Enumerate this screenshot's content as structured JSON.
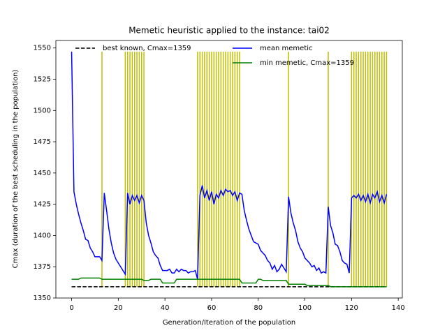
{
  "chart_data": {
    "type": "line",
    "title": "Memetic heuristic applied to the instance: tai02",
    "xlabel": "Generation/Iteration of the population",
    "ylabel": "Cmax (duration of the best scheduling in the population)",
    "xlim": [
      -6.75,
      141.75
    ],
    "ylim": [
      1350,
      1556
    ],
    "xticks": [
      0,
      20,
      40,
      60,
      80,
      100,
      120,
      140
    ],
    "yticks": [
      1350,
      1375,
      1400,
      1425,
      1450,
      1475,
      1500,
      1525,
      1550
    ],
    "x": [
      0,
      1,
      2,
      3,
      4,
      5,
      6,
      7,
      8,
      9,
      10,
      11,
      12,
      13,
      14,
      15,
      16,
      17,
      18,
      19,
      20,
      21,
      22,
      23,
      24,
      25,
      26,
      27,
      28,
      29,
      30,
      31,
      32,
      33,
      34,
      35,
      36,
      37,
      38,
      39,
      40,
      41,
      42,
      43,
      44,
      45,
      46,
      47,
      48,
      49,
      50,
      51,
      52,
      53,
      54,
      55,
      56,
      57,
      58,
      59,
      60,
      61,
      62,
      63,
      64,
      65,
      66,
      67,
      68,
      69,
      70,
      71,
      72,
      73,
      74,
      75,
      76,
      77,
      78,
      79,
      80,
      81,
      82,
      83,
      84,
      85,
      86,
      87,
      88,
      89,
      90,
      91,
      92,
      93,
      94,
      95,
      96,
      97,
      98,
      99,
      100,
      101,
      102,
      103,
      104,
      105,
      106,
      107,
      108,
      109,
      110,
      111,
      112,
      113,
      114,
      115,
      116,
      117,
      118,
      119,
      120,
      121,
      122,
      123,
      124,
      125,
      126,
      127,
      128,
      129,
      130,
      131,
      132,
      133,
      134,
      135
    ],
    "vlines": {
      "color": "#bfbf00",
      "ymin": 1359,
      "ymax": 1547,
      "x": [
        13,
        23,
        24,
        25,
        26,
        27,
        28,
        29,
        30,
        31,
        54,
        55,
        56,
        57,
        58,
        59,
        60,
        61,
        62,
        63,
        64,
        65,
        66,
        67,
        68,
        69,
        70,
        71,
        72,
        93,
        110,
        120,
        121,
        122,
        123,
        124,
        125,
        126,
        127,
        128,
        129,
        130,
        131,
        132,
        133,
        134,
        135
      ]
    },
    "series": [
      {
        "name": "best known, Cmax=1359",
        "color": "#000000",
        "dashed": true,
        "x": [
          0,
          135
        ],
        "values": [
          1359,
          1359
        ]
      },
      {
        "name": "mean memetic",
        "color": "#0000ff",
        "values": [
          1547,
          1435,
          1425,
          1417,
          1410,
          1404,
          1397,
          1396,
          1390,
          1387,
          1383,
          1383,
          1383,
          1380,
          1434,
          1420,
          1405,
          1394,
          1386,
          1381,
          1378,
          1375,
          1372,
          1369,
          1434,
          1425,
          1432,
          1428,
          1432,
          1426,
          1432,
          1428,
          1410,
          1400,
          1394,
          1387,
          1384,
          1382,
          1376,
          1372,
          1372,
          1372,
          1373,
          1370,
          1370,
          1373,
          1371,
          1373,
          1372,
          1372,
          1370,
          1371,
          1371,
          1372,
          1365,
          1432,
          1440,
          1430,
          1436,
          1428,
          1435,
          1425,
          1433,
          1430,
          1436,
          1432,
          1437,
          1435,
          1436,
          1432,
          1435,
          1428,
          1434,
          1433,
          1420,
          1412,
          1405,
          1400,
          1395,
          1394,
          1393,
          1388,
          1386,
          1384,
          1380,
          1378,
          1373,
          1376,
          1371,
          1373,
          1377,
          1374,
          1371,
          1431,
          1418,
          1410,
          1404,
          1395,
          1390,
          1387,
          1382,
          1380,
          1378,
          1375,
          1376,
          1372,
          1374,
          1370,
          1371,
          1370,
          1423,
          1408,
          1402,
          1393,
          1392,
          1387,
          1380,
          1378,
          1377,
          1370,
          1430,
          1432,
          1430,
          1433,
          1428,
          1432,
          1427,
          1433,
          1426,
          1433,
          1430,
          1435,
          1427,
          1432,
          1426,
          1433
        ]
      },
      {
        "name": "min memetic, Cmax=1359",
        "color": "#008000",
        "values": [
          1365,
          1365,
          1365,
          1365,
          1366,
          1366,
          1366,
          1366,
          1366,
          1366,
          1366,
          1366,
          1366,
          1365,
          1365,
          1365,
          1365,
          1365,
          1365,
          1365,
          1365,
          1365,
          1365,
          1365,
          1365,
          1365,
          1365,
          1365,
          1365,
          1365,
          1365,
          1364,
          1364,
          1364,
          1365,
          1365,
          1365,
          1365,
          1365,
          1362,
          1362,
          1362,
          1362,
          1362,
          1362,
          1365,
          1365,
          1365,
          1365,
          1365,
          1365,
          1365,
          1365,
          1365,
          1365,
          1365,
          1365,
          1365,
          1365,
          1365,
          1365,
          1365,
          1365,
          1365,
          1365,
          1365,
          1365,
          1365,
          1365,
          1365,
          1365,
          1365,
          1365,
          1362,
          1362,
          1362,
          1362,
          1362,
          1362,
          1362,
          1365,
          1365,
          1364,
          1364,
          1364,
          1364,
          1364,
          1364,
          1364,
          1364,
          1364,
          1364,
          1364,
          1361,
          1361,
          1361,
          1361,
          1361,
          1361,
          1361,
          1361,
          1360,
          1360,
          1360,
          1360,
          1360,
          1360,
          1360,
          1360,
          1360,
          1360,
          1359,
          1359,
          1359,
          1359,
          1359,
          1359,
          1359,
          1359,
          1359,
          1359,
          1359,
          1359,
          1359,
          1359,
          1359,
          1359,
          1359,
          1359,
          1359,
          1359,
          1359,
          1359,
          1359,
          1359,
          1359
        ]
      }
    ]
  }
}
